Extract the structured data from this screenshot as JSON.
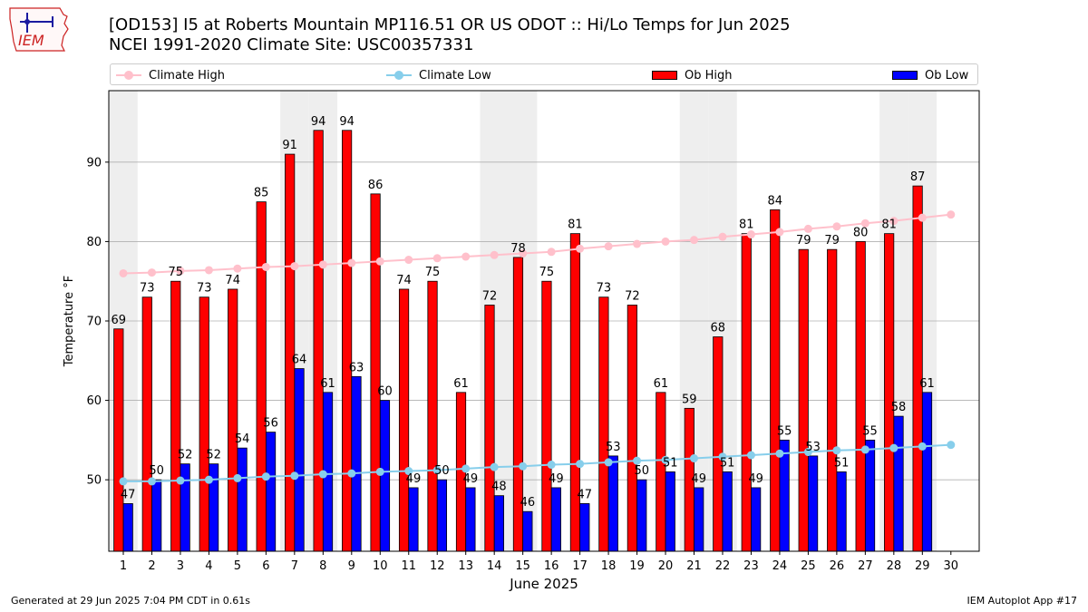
{
  "header": {
    "title_line1": "[OD153] I5 at Roberts Mountain MP116.51  OR US ODOT :: Hi/Lo Temps for Jun 2025",
    "title_line2": "NCEI 1991-2020 Climate Site: USC00357331"
  },
  "logo": {
    "text": "IEM",
    "icon": "iowa-state-map-weather-station-icon"
  },
  "footer": {
    "generated": "Generated at 29 Jun 2025 7:04 PM CDT in 0.61s",
    "app": "IEM Autoplot App #17"
  },
  "colors": {
    "ob_high": "#ff0000",
    "ob_low": "#0000ff",
    "climate_high": "#ffc0cb",
    "climate_low": "#87ceeb",
    "weekend_shade": "#eeeeee",
    "grid": "#b0b0b0"
  },
  "chart_data": {
    "type": "bar",
    "title": "[OD153] I5 at Roberts Mountain MP116.51  OR US ODOT :: Hi/Lo Temps for Jun 2025",
    "xlabel": "June 2025",
    "ylabel": "Temperature °F",
    "ylim": [
      41,
      99
    ],
    "yticks": [
      50,
      60,
      70,
      80,
      90
    ],
    "grid": true,
    "legend_position": "top",
    "categories": [
      "1",
      "2",
      "3",
      "4",
      "5",
      "6",
      "7",
      "8",
      "9",
      "10",
      "11",
      "12",
      "13",
      "14",
      "15",
      "16",
      "17",
      "18",
      "19",
      "20",
      "21",
      "22",
      "23",
      "24",
      "25",
      "26",
      "27",
      "28",
      "29",
      "30"
    ],
    "shaded_days": [
      1,
      7,
      8,
      14,
      15,
      21,
      22,
      28,
      29
    ],
    "series": [
      {
        "name": "Ob High",
        "kind": "bar",
        "values": [
          69,
          73,
          75,
          73,
          74,
          85,
          91,
          94,
          94,
          86,
          74,
          75,
          61,
          72,
          78,
          75,
          81,
          73,
          72,
          61,
          59,
          68,
          81,
          84,
          79,
          79,
          80,
          81,
          87,
          null
        ]
      },
      {
        "name": "Ob Low",
        "kind": "bar",
        "values": [
          47,
          50,
          52,
          52,
          54,
          56,
          64,
          61,
          63,
          60,
          49,
          50,
          49,
          48,
          46,
          49,
          47,
          53,
          50,
          51,
          49,
          51,
          49,
          55,
          53,
          51,
          55,
          58,
          61,
          null
        ]
      },
      {
        "name": "Climate High",
        "kind": "line",
        "values": [
          76.0,
          76.1,
          76.3,
          76.4,
          76.6,
          76.8,
          76.9,
          77.1,
          77.3,
          77.5,
          77.7,
          77.9,
          78.1,
          78.3,
          78.5,
          78.7,
          79.1,
          79.4,
          79.7,
          80.0,
          80.2,
          80.6,
          80.9,
          81.2,
          81.6,
          81.9,
          82.3,
          82.6,
          83.0,
          83.4
        ]
      },
      {
        "name": "Climate Low",
        "kind": "line",
        "values": [
          49.8,
          49.8,
          49.9,
          50.0,
          50.2,
          50.4,
          50.5,
          50.7,
          50.8,
          51.0,
          51.1,
          51.2,
          51.4,
          51.6,
          51.7,
          51.9,
          52.0,
          52.2,
          52.4,
          52.5,
          52.7,
          52.9,
          53.1,
          53.3,
          53.5,
          53.7,
          53.8,
          54.0,
          54.2,
          54.4
        ]
      }
    ]
  }
}
